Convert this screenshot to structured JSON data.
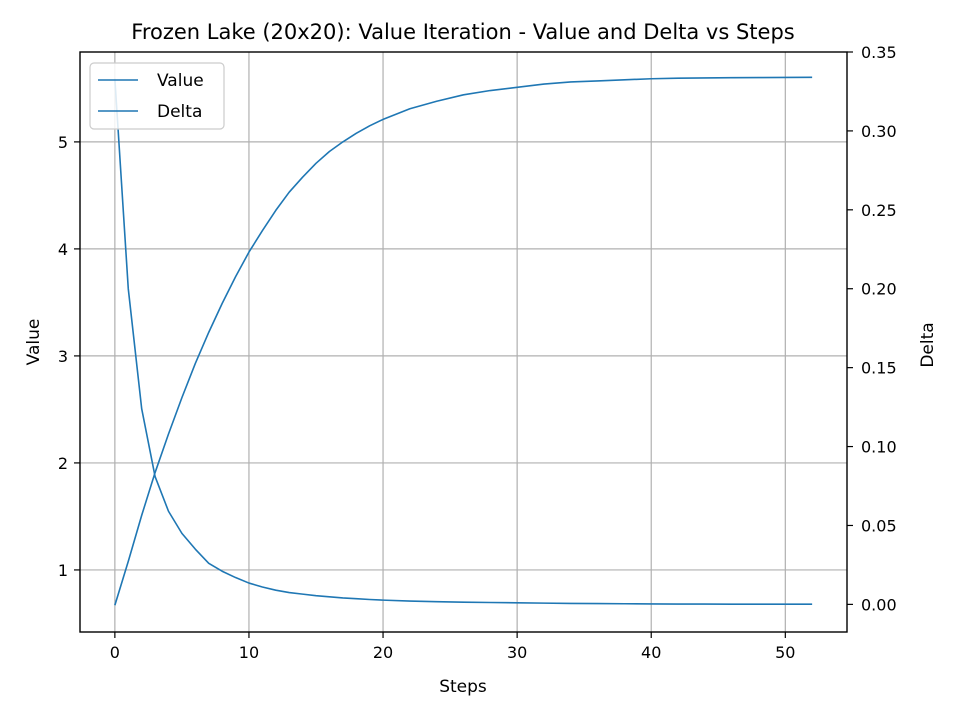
{
  "chart_data": {
    "type": "line",
    "title": "Frozen Lake (20x20): Value Iteration - Value and Delta vs Steps",
    "xlabel": "Steps",
    "ylabel": "Value",
    "y2label": "Delta",
    "xlim": [
      -2.6,
      54.6
    ],
    "ylim": [
      0.42,
      5.84
    ],
    "y2lim": [
      -0.0175,
      0.35
    ],
    "xticks": [
      0,
      10,
      20,
      30,
      40,
      50
    ],
    "yticks": [
      1,
      2,
      3,
      4,
      5
    ],
    "y2ticks": [
      "0.00",
      "0.05",
      "0.10",
      "0.15",
      "0.20",
      "0.25",
      "0.30",
      "0.35"
    ],
    "grid": true,
    "legend_position": "upper-left",
    "series": [
      {
        "name": "Value",
        "axis": "left",
        "color": "#1f77b4",
        "x": [
          0,
          1,
          2,
          3,
          4,
          5,
          6,
          7,
          8,
          9,
          10,
          11,
          12,
          13,
          14,
          15,
          16,
          17,
          18,
          19,
          20,
          22,
          24,
          26,
          28,
          30,
          32,
          34,
          36,
          38,
          40,
          42,
          44,
          46,
          48,
          50,
          52
        ],
        "values": [
          0.67,
          1.08,
          1.51,
          1.91,
          2.27,
          2.61,
          2.93,
          3.22,
          3.49,
          3.74,
          3.97,
          4.17,
          4.36,
          4.53,
          4.67,
          4.8,
          4.91,
          5.0,
          5.08,
          5.15,
          5.21,
          5.31,
          5.38,
          5.44,
          5.48,
          5.51,
          5.54,
          5.56,
          5.57,
          5.58,
          5.59,
          5.595,
          5.598,
          5.6,
          5.601,
          5.602,
          5.603
        ]
      },
      {
        "name": "Delta",
        "axis": "right",
        "color": "#1f77b4",
        "x": [
          0,
          1,
          2,
          3,
          4,
          5,
          6,
          7,
          8,
          9,
          10,
          11,
          12,
          13,
          14,
          15,
          16,
          17,
          18,
          19,
          20,
          22,
          24,
          26,
          28,
          30,
          32,
          34,
          36,
          38,
          40,
          42,
          44,
          46,
          48,
          50,
          52
        ],
        "values": [
          0.333,
          0.2,
          0.124,
          0.081,
          0.059,
          0.045,
          0.035,
          0.026,
          0.021,
          0.017,
          0.0135,
          0.011,
          0.009,
          0.0075,
          0.0065,
          0.0055,
          0.0048,
          0.0041,
          0.0036,
          0.0031,
          0.0027,
          0.0021,
          0.0017,
          0.0014,
          0.0012,
          0.001,
          0.0008,
          0.0006,
          0.0005,
          0.0004,
          0.0003,
          0.0002,
          0.0002,
          0.0001,
          0.0001,
          0.0001,
          0.0001
        ]
      }
    ]
  }
}
